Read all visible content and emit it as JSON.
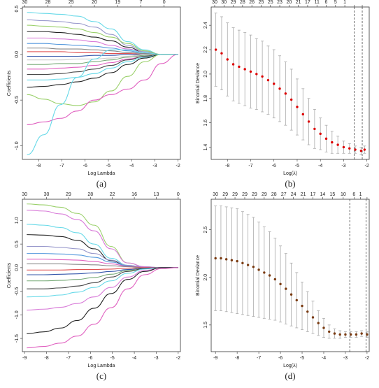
{
  "chart_data": [
    {
      "id": "a",
      "type": "line",
      "caption": "(a)",
      "xlabel": "Log Lambda",
      "ylabel": "Coefficients",
      "xlim": [
        -8.7,
        -1.9
      ],
      "ylim": [
        -1.15,
        0.52
      ],
      "x_ticks": [
        -8,
        -7,
        -6,
        -5,
        -4,
        -3,
        -2
      ],
      "y_ticks": [
        -1.0,
        -0.5,
        0.0,
        0.5
      ],
      "y_tick_labels": [
        "-1.0",
        "-0.5",
        "0.0",
        "0.5"
      ],
      "top_ticks_x": [
        -8.6,
        -7.6,
        -6.6,
        -5.6,
        -4.6,
        -3.6,
        -2.6
      ],
      "top_tick_labels": [
        "30",
        "28",
        "25",
        "20",
        "19",
        "7",
        "0"
      ],
      "series": [
        {
          "color": "#66d9e8",
          "values": [
            0.46,
            0.45,
            0.44,
            0.42,
            0.36,
            0.28,
            0.14,
            0.05,
            0.0,
            0.0
          ]
        },
        {
          "color": "#9999cc",
          "values": [
            0.38,
            0.37,
            0.36,
            0.34,
            0.3,
            0.22,
            0.1,
            0.03,
            0.0,
            0.0
          ]
        },
        {
          "color": "#9ad06a",
          "values": [
            0.32,
            0.31,
            0.3,
            0.28,
            0.24,
            0.19,
            0.12,
            0.04,
            0.0,
            0.0
          ]
        },
        {
          "color": "#222222",
          "values": [
            0.25,
            0.25,
            0.24,
            0.22,
            0.19,
            0.15,
            0.08,
            0.02,
            0.0,
            0.0
          ]
        },
        {
          "color": "#d87ad8",
          "values": [
            0.18,
            0.18,
            0.17,
            0.16,
            0.14,
            0.1,
            0.06,
            0.02,
            0.0,
            0.0
          ]
        },
        {
          "color": "#5599dd",
          "values": [
            0.12,
            0.12,
            0.11,
            0.1,
            0.09,
            0.07,
            0.04,
            0.01,
            0.0,
            0.0
          ]
        },
        {
          "color": "#888888",
          "values": [
            0.07,
            0.07,
            0.06,
            0.06,
            0.05,
            0.04,
            0.02,
            0.01,
            0.0,
            0.0
          ]
        },
        {
          "color": "#e05050",
          "values": [
            0.03,
            0.03,
            0.03,
            0.02,
            0.02,
            0.01,
            0.01,
            0.0,
            0.0,
            0.0
          ]
        },
        {
          "color": "#3355aa",
          "values": [
            -0.02,
            -0.02,
            -0.02,
            -0.02,
            -0.01,
            -0.01,
            0.0,
            0.0,
            0.0,
            0.0
          ]
        },
        {
          "color": "#cccccc",
          "values": [
            -0.06,
            -0.06,
            -0.06,
            -0.05,
            -0.05,
            -0.04,
            -0.02,
            0.0,
            0.0,
            0.0
          ]
        },
        {
          "color": "#77aa77",
          "values": [
            -0.11,
            -0.11,
            -0.1,
            -0.1,
            -0.08,
            -0.06,
            -0.03,
            -0.01,
            0.0,
            0.0
          ]
        },
        {
          "color": "#e060c0",
          "values": [
            -0.16,
            -0.16,
            -0.15,
            -0.14,
            -0.12,
            -0.09,
            -0.05,
            -0.02,
            0.0,
            0.0
          ]
        },
        {
          "color": "#4a4a4a",
          "values": [
            -0.22,
            -0.22,
            -0.21,
            -0.19,
            -0.16,
            -0.12,
            -0.06,
            -0.02,
            0.0,
            0.0
          ]
        },
        {
          "color": "#66d9e8",
          "values": [
            -0.28,
            -0.28,
            -0.27,
            -0.25,
            -0.21,
            -0.15,
            -0.08,
            -0.03,
            0.0,
            0.0
          ]
        },
        {
          "color": "#222222",
          "values": [
            -0.36,
            -0.35,
            -0.33,
            -0.3,
            -0.26,
            -0.2,
            -0.11,
            -0.04,
            0.0,
            0.0
          ]
        },
        {
          "color": "#9ad06a",
          "values": [
            -0.44,
            -0.49,
            -0.54,
            -0.56,
            -0.52,
            -0.4,
            -0.24,
            -0.08,
            0.0,
            0.0
          ]
        },
        {
          "color": "#e060c0",
          "values": [
            -0.77,
            -0.74,
            -0.7,
            -0.62,
            -0.5,
            -0.44,
            -0.38,
            -0.28,
            -0.1,
            0.0
          ]
        },
        {
          "color": "#66d9e8",
          "values": [
            -1.1,
            -0.88,
            -0.55,
            -0.25,
            -0.05,
            0.05,
            0.05,
            0.02,
            0.0,
            0.0
          ]
        }
      ]
    },
    {
      "id": "b",
      "type": "scatter",
      "caption": "(b)",
      "xlabel": "Log(λ)",
      "ylabel": "Binomial Deviance",
      "xlim": [
        -8.7,
        -1.9
      ],
      "ylim": [
        1.3,
        2.55
      ],
      "x_ticks": [
        -8,
        -7,
        -6,
        -5,
        -4,
        -3,
        -2
      ],
      "y_ticks": [
        1.4,
        1.6,
        1.8,
        2.0,
        2.2,
        2.4
      ],
      "y_tick_labels": [
        "1.4",
        "1.6",
        "1.8",
        "2.0",
        "2.2",
        "2.4"
      ],
      "top_ticks_x": [
        -8.55,
        -8.15,
        -7.75,
        -7.35,
        -6.95,
        -6.55,
        -6.15,
        -5.75,
        -5.35,
        -4.95,
        -4.55,
        -4.15,
        -3.75,
        -3.35,
        -2.95,
        -2.55,
        -2.2
      ],
      "top_tick_labels": [
        "30",
        "30",
        "29",
        "28",
        "26",
        "25",
        "25",
        "23",
        "20",
        "21",
        "17",
        "11",
        "6",
        "5",
        "1",
        "",
        ""
      ],
      "vlines": [
        -2.55,
        -2.2
      ],
      "point_color": "#dd0000",
      "x": [
        -8.5,
        -8.25,
        -8.0,
        -7.75,
        -7.5,
        -7.25,
        -7.0,
        -6.75,
        -6.5,
        -6.25,
        -6.0,
        -5.75,
        -5.5,
        -5.25,
        -5.0,
        -4.75,
        -4.5,
        -4.25,
        -4.0,
        -3.75,
        -3.5,
        -3.25,
        -3.0,
        -2.75,
        -2.5,
        -2.25,
        -2.1
      ],
      "y": [
        2.2,
        2.17,
        2.12,
        2.08,
        2.06,
        2.04,
        2.02,
        2.0,
        1.98,
        1.95,
        1.92,
        1.88,
        1.84,
        1.79,
        1.73,
        1.67,
        1.61,
        1.55,
        1.51,
        1.47,
        1.44,
        1.42,
        1.4,
        1.39,
        1.38,
        1.37,
        1.38
      ],
      "err": [
        0.3,
        0.3,
        0.3,
        0.3,
        0.3,
        0.3,
        0.3,
        0.29,
        0.29,
        0.28,
        0.28,
        0.27,
        0.26,
        0.25,
        0.23,
        0.21,
        0.19,
        0.16,
        0.13,
        0.11,
        0.09,
        0.07,
        0.05,
        0.04,
        0.03,
        0.03,
        0.03
      ]
    },
    {
      "id": "c",
      "type": "line",
      "caption": "(c)",
      "xlabel": "Log Lambda",
      "ylabel": "Coefficients",
      "xlim": [
        -9.1,
        -1.9
      ],
      "ylim": [
        -1.78,
        1.45
      ],
      "x_ticks": [
        -9,
        -8,
        -7,
        -6,
        -5,
        -4,
        -3,
        -2
      ],
      "y_ticks": [
        -1.5,
        -1.0,
        -0.5,
        0.0,
        0.5,
        1.0
      ],
      "y_tick_labels": [
        "-1.5",
        "-1.0",
        "-0.5",
        "0.0",
        "0.5",
        "1.0"
      ],
      "top_ticks_x": [
        -9.0,
        -8.0,
        -7.0,
        -6.0,
        -5.0,
        -4.0,
        -3.0,
        -2.0
      ],
      "top_tick_labels": [
        "30",
        "30",
        "29",
        "28",
        "22",
        "16",
        "13",
        "0"
      ],
      "series": [
        {
          "color": "#9ad06a",
          "values": [
            1.35,
            1.33,
            1.28,
            1.15,
            0.9,
            0.45,
            0.1,
            0.02,
            0.0,
            0.0
          ]
        },
        {
          "color": "#d87ad8",
          "values": [
            1.22,
            1.2,
            1.14,
            1.02,
            0.78,
            0.4,
            0.1,
            0.02,
            0.0,
            0.0
          ]
        },
        {
          "color": "#66d9e8",
          "values": [
            0.92,
            0.9,
            0.85,
            0.74,
            0.5,
            0.2,
            0.05,
            0.01,
            0.0,
            0.0
          ]
        },
        {
          "color": "#222222",
          "values": [
            0.7,
            0.69,
            0.66,
            0.58,
            0.4,
            0.15,
            0.03,
            0.0,
            0.0,
            0.0
          ]
        },
        {
          "color": "#9999cc",
          "values": [
            0.45,
            0.45,
            0.43,
            0.4,
            0.3,
            0.16,
            0.05,
            0.01,
            0.0,
            0.0
          ]
        },
        {
          "color": "#5599dd",
          "values": [
            0.3,
            0.3,
            0.29,
            0.27,
            0.22,
            0.12,
            0.04,
            0.01,
            0.0,
            0.0
          ]
        },
        {
          "color": "#e060c0",
          "values": [
            0.18,
            0.18,
            0.17,
            0.16,
            0.13,
            0.08,
            0.03,
            0.01,
            0.0,
            0.0
          ]
        },
        {
          "color": "#888888",
          "values": [
            0.08,
            0.08,
            0.08,
            0.07,
            0.06,
            0.04,
            0.02,
            0.0,
            0.0,
            0.0
          ]
        },
        {
          "color": "#e05050",
          "values": [
            -0.05,
            -0.05,
            -0.05,
            -0.04,
            -0.04,
            -0.03,
            -0.01,
            0.0,
            0.0,
            0.0
          ]
        },
        {
          "color": "#3355aa",
          "values": [
            -0.15,
            -0.15,
            -0.14,
            -0.13,
            -0.11,
            -0.08,
            -0.04,
            -0.01,
            0.0,
            0.0
          ]
        },
        {
          "color": "#77aa77",
          "values": [
            -0.28,
            -0.28,
            -0.27,
            -0.25,
            -0.21,
            -0.14,
            -0.06,
            -0.02,
            0.0,
            0.0
          ]
        },
        {
          "color": "#4a4a4a",
          "values": [
            -0.45,
            -0.45,
            -0.43,
            -0.39,
            -0.32,
            -0.2,
            -0.08,
            -0.02,
            0.0,
            0.0
          ]
        },
        {
          "color": "#66d9e8",
          "values": [
            -0.62,
            -0.61,
            -0.58,
            -0.52,
            -0.42,
            -0.28,
            -0.12,
            -0.03,
            0.0,
            0.0
          ]
        },
        {
          "color": "#d87ad8",
          "values": [
            -0.9,
            -0.88,
            -0.84,
            -0.76,
            -0.62,
            -0.42,
            -0.2,
            -0.06,
            0.0,
            0.0
          ]
        },
        {
          "color": "#222222",
          "values": [
            -1.4,
            -1.36,
            -1.28,
            -1.12,
            -0.86,
            -0.55,
            -0.25,
            -0.08,
            0.0,
            0.0
          ]
        },
        {
          "color": "#e060c0",
          "values": [
            -1.7,
            -1.67,
            -1.6,
            -1.45,
            -1.2,
            -0.85,
            -0.45,
            -0.15,
            -0.02,
            0.0
          ]
        }
      ]
    },
    {
      "id": "d",
      "type": "scatter",
      "caption": "(d)",
      "xlabel": "Log(λ)",
      "ylabel": "Binomial Deviance",
      "xlim": [
        -9.2,
        -1.9
      ],
      "ylim": [
        1.22,
        2.82
      ],
      "x_ticks": [
        -9,
        -8,
        -7,
        -6,
        -5,
        -4,
        -3,
        -2
      ],
      "y_ticks": [
        1.5,
        2.0,
        2.5
      ],
      "y_tick_labels": [
        "1.5",
        "2.0",
        "2.5"
      ],
      "top_ticks_x": [
        -9.0,
        -8.55,
        -8.1,
        -7.65,
        -7.2,
        -6.75,
        -6.3,
        -5.85,
        -5.4,
        -4.95,
        -4.5,
        -4.05,
        -3.6,
        -3.1,
        -2.6,
        -2.3,
        -2.0
      ],
      "top_tick_labels": [
        "30",
        "29",
        "29",
        "29",
        "29",
        "29",
        "28",
        "27",
        "24",
        "21",
        "17",
        "14",
        "15",
        "10",
        "6",
        "1",
        ""
      ],
      "vlines": [
        -2.8,
        -2.05
      ],
      "point_color": "#7a3a10",
      "x": [
        -9.0,
        -8.75,
        -8.5,
        -8.25,
        -8.0,
        -7.75,
        -7.5,
        -7.25,
        -7.0,
        -6.75,
        -6.5,
        -6.25,
        -6.0,
        -5.75,
        -5.5,
        -5.25,
        -5.0,
        -4.75,
        -4.5,
        -4.25,
        -4.0,
        -3.75,
        -3.5,
        -3.25,
        -3.0,
        -2.75,
        -2.5,
        -2.25,
        -2.0
      ],
      "y": [
        2.2,
        2.2,
        2.19,
        2.18,
        2.17,
        2.15,
        2.13,
        2.11,
        2.08,
        2.05,
        2.02,
        1.98,
        1.93,
        1.88,
        1.82,
        1.76,
        1.7,
        1.64,
        1.58,
        1.52,
        1.47,
        1.43,
        1.41,
        1.4,
        1.4,
        1.4,
        1.4,
        1.41,
        1.4
      ],
      "err": [
        0.55,
        0.55,
        0.55,
        0.55,
        0.55,
        0.54,
        0.53,
        0.52,
        0.5,
        0.48,
        0.46,
        0.43,
        0.4,
        0.37,
        0.33,
        0.29,
        0.25,
        0.21,
        0.17,
        0.13,
        0.1,
        0.07,
        0.05,
        0.04,
        0.03,
        0.03,
        0.03,
        0.03,
        0.03
      ]
    }
  ]
}
